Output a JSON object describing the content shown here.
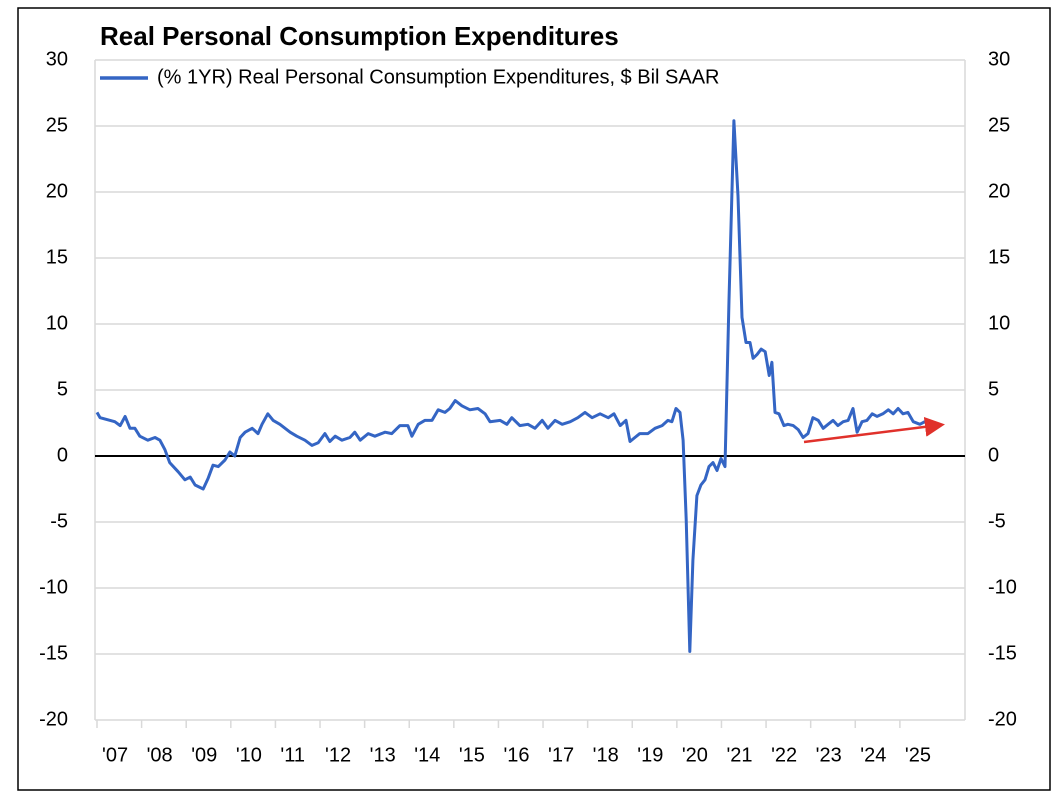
{
  "chart_data": {
    "type": "line",
    "title": "Real Personal Consumption Expenditures",
    "x": [
      2007.0,
      2007.07,
      2007.4,
      2007.52,
      2007.63,
      2007.74,
      2007.85,
      2007.96,
      2008.14,
      2008.3,
      2008.41,
      2008.52,
      2008.63,
      2008.82,
      2008.97,
      2009.09,
      2009.2,
      2009.38,
      2009.49,
      2009.6,
      2009.72,
      2009.87,
      2009.98,
      2010.09,
      2010.21,
      2010.32,
      2010.48,
      2010.61,
      2010.7,
      2010.83,
      2010.95,
      2011.1,
      2011.33,
      2011.48,
      2011.66,
      2011.82,
      2011.96,
      2012.11,
      2012.22,
      2012.34,
      2012.49,
      2012.67,
      2012.78,
      2012.9,
      2013.08,
      2013.23,
      2013.46,
      2013.61,
      2013.79,
      2013.97,
      2014.06,
      2014.2,
      2014.35,
      2014.51,
      2014.65,
      2014.8,
      2014.91,
      2015.03,
      2015.18,
      2015.36,
      2015.54,
      2015.7,
      2015.81,
      2016.04,
      2016.19,
      2016.3,
      2016.48,
      2016.66,
      2016.82,
      2016.98,
      2017.11,
      2017.27,
      2017.43,
      2017.61,
      2017.78,
      2017.94,
      2018.1,
      2018.28,
      2018.46,
      2018.59,
      2018.73,
      2018.86,
      2018.95,
      2019.06,
      2019.17,
      2019.35,
      2019.51,
      2019.67,
      2019.8,
      2019.89,
      2019.98,
      2020.07,
      2020.14,
      2020.21,
      2020.29,
      2020.36,
      2020.45,
      2020.54,
      2020.63,
      2020.72,
      2020.81,
      2020.9,
      2020.99,
      2021.08,
      2021.17,
      2021.28,
      2021.37,
      2021.46,
      2021.55,
      2021.64,
      2021.71,
      2021.8,
      2021.89,
      2021.98,
      2022.07,
      2022.13,
      2022.2,
      2022.29,
      2022.4,
      2022.49,
      2022.61,
      2022.72,
      2022.83,
      2022.94,
      2023.05,
      2023.17,
      2023.28,
      2023.39,
      2023.5,
      2023.61,
      2023.73,
      2023.84,
      2023.95,
      2024.04,
      2024.15,
      2024.26,
      2024.38,
      2024.49,
      2024.62,
      2024.74,
      2024.85,
      2024.96,
      2025.07,
      2025.18,
      2025.3,
      2025.45,
      2025.61
    ],
    "series": [
      {
        "name": "(% 1YR) Real Personal Consumption Expenditures, $ Bil SAAR",
        "color": "#3465c4",
        "values": [
          3.3,
          2.9,
          2.6,
          2.3,
          3.0,
          2.1,
          2.1,
          1.5,
          1.2,
          1.4,
          1.2,
          0.5,
          -0.5,
          -1.2,
          -1.8,
          -1.6,
          -2.2,
          -2.5,
          -1.7,
          -0.7,
          -0.8,
          -0.3,
          0.3,
          0.0,
          1.4,
          1.8,
          2.1,
          1.7,
          2.4,
          3.2,
          2.7,
          2.4,
          1.8,
          1.5,
          1.2,
          0.8,
          1.0,
          1.7,
          1.1,
          1.5,
          1.2,
          1.4,
          1.8,
          1.2,
          1.7,
          1.5,
          1.8,
          1.7,
          2.3,
          2.3,
          1.5,
          2.4,
          2.7,
          2.7,
          3.5,
          3.3,
          3.6,
          4.2,
          3.8,
          3.5,
          3.6,
          3.2,
          2.6,
          2.7,
          2.4,
          2.9,
          2.3,
          2.4,
          2.1,
          2.7,
          2.1,
          2.7,
          2.4,
          2.6,
          2.9,
          3.3,
          2.9,
          3.2,
          2.9,
          3.2,
          2.3,
          2.7,
          1.1,
          1.4,
          1.7,
          1.7,
          2.1,
          2.3,
          2.7,
          2.6,
          3.6,
          3.3,
          1.2,
          -4.8,
          -14.8,
          -7.9,
          -3.0,
          -2.2,
          -1.8,
          -0.8,
          -0.5,
          -1.1,
          -0.2,
          -0.8,
          11.8,
          25.4,
          19.7,
          10.5,
          8.6,
          8.6,
          7.4,
          7.7,
          8.1,
          7.9,
          6.1,
          7.1,
          3.3,
          3.2,
          2.3,
          2.4,
          2.3,
          2.0,
          1.4,
          1.7,
          2.9,
          2.7,
          2.1,
          2.4,
          2.7,
          2.3,
          2.6,
          2.7,
          3.6,
          1.8,
          2.6,
          2.7,
          3.2,
          3.0,
          3.2,
          3.5,
          3.2,
          3.6,
          3.2,
          3.3,
          2.6,
          2.4,
          2.7
        ]
      }
    ],
    "xlim": [
      2007,
      2026.46
    ],
    "xticks": [
      {
        "value": 2007,
        "label": "'07"
      },
      {
        "value": 2008,
        "label": "'08"
      },
      {
        "value": 2009,
        "label": "'09"
      },
      {
        "value": 2010,
        "label": "'10"
      },
      {
        "value": 2011,
        "label": "'11"
      },
      {
        "value": 2012,
        "label": "'12"
      },
      {
        "value": 2013,
        "label": "'13"
      },
      {
        "value": 2014,
        "label": "'14"
      },
      {
        "value": 2015,
        "label": "'15"
      },
      {
        "value": 2016,
        "label": "'16"
      },
      {
        "value": 2017,
        "label": "'17"
      },
      {
        "value": 2018,
        "label": "'18"
      },
      {
        "value": 2019,
        "label": "'19"
      },
      {
        "value": 2020,
        "label": "'20"
      },
      {
        "value": 2021,
        "label": "'21"
      },
      {
        "value": 2022,
        "label": "'22"
      },
      {
        "value": 2023,
        "label": "'23"
      },
      {
        "value": 2024,
        "label": "'24"
      },
      {
        "value": 2025,
        "label": "'25"
      }
    ],
    "ylim": [
      -20,
      30
    ],
    "yticks": [
      30,
      25,
      20,
      15,
      10,
      5,
      0,
      -5,
      -10,
      -15,
      -20
    ],
    "grid": true
  }
}
